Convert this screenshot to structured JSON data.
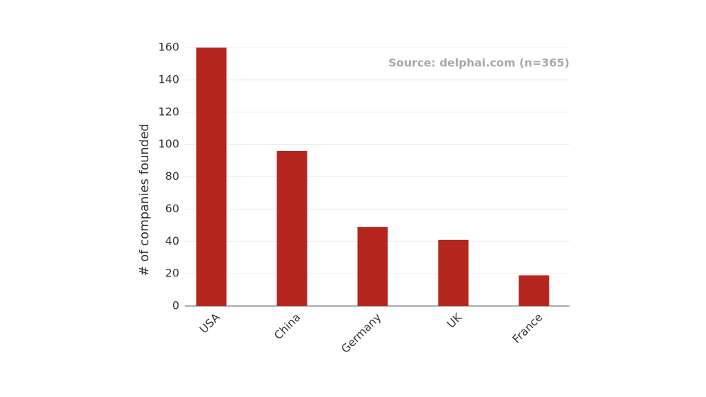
{
  "chart_data": {
    "type": "bar",
    "y_label": "# of companies founded",
    "annotation": "Source: delphai.com (n=365)",
    "categories": [
      "USA",
      "China",
      "Germany",
      "UK",
      "France"
    ],
    "values": [
      160,
      96,
      49,
      41,
      19
    ],
    "color": "#b5261e",
    "ylim": [
      0,
      160
    ],
    "yticks": [
      0,
      20,
      40,
      60,
      80,
      100,
      120,
      140,
      160
    ],
    "grid": true
  }
}
